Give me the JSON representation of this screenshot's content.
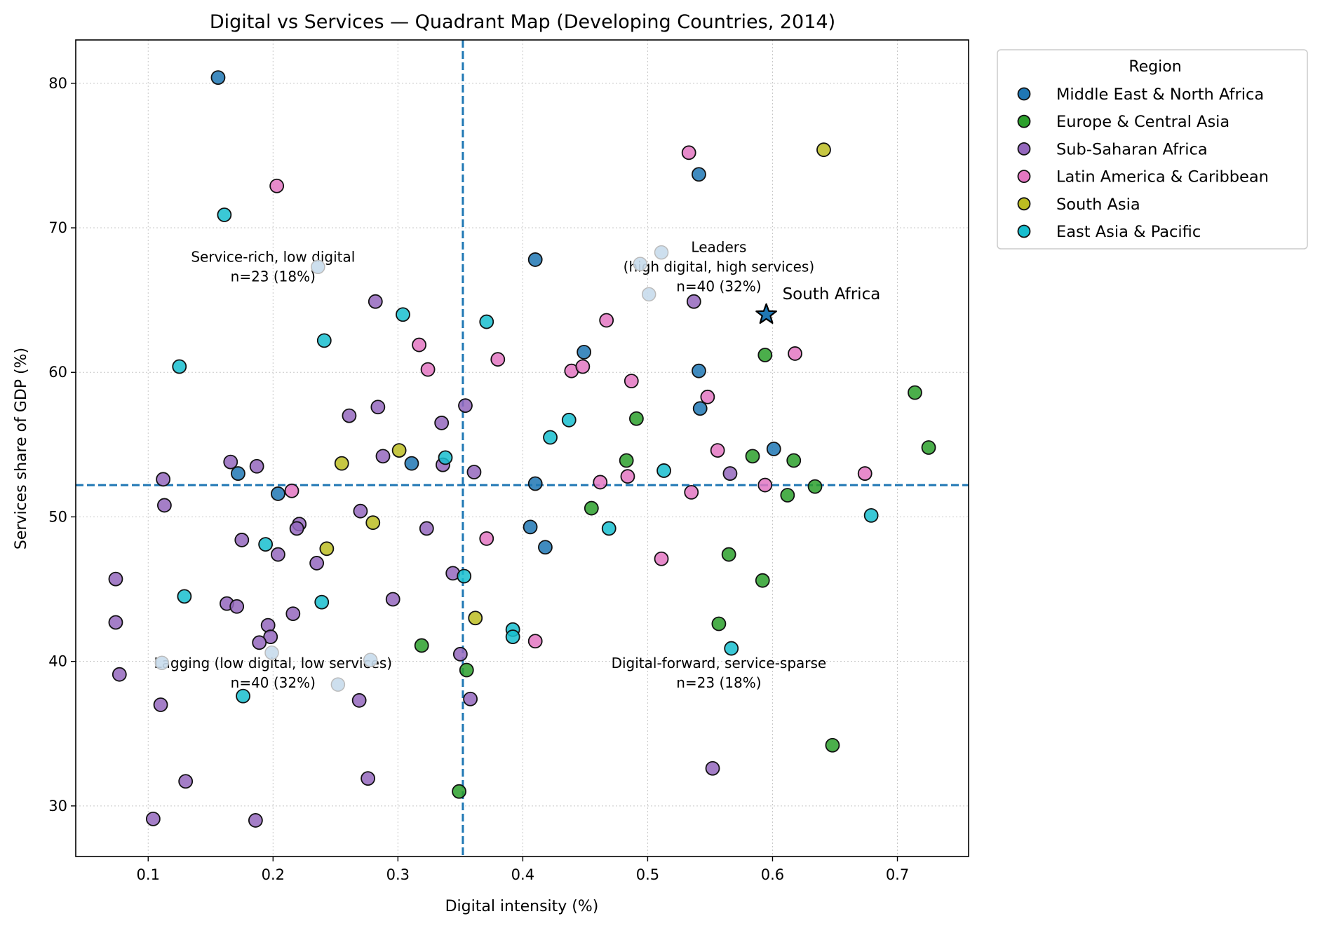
{
  "chart_data": {
    "type": "scatter",
    "title": "Digital vs Services — Quadrant Map (Developing Countries, 2014)",
    "xlabel": "Digital intensity (%)",
    "ylabel": "Services share of GDP (%)",
    "xlim": [
      0.042,
      0.757
    ],
    "ylim": [
      26.5,
      83.0
    ],
    "xticks": [
      0.1,
      0.2,
      0.3,
      0.4,
      0.5,
      0.6,
      0.7
    ],
    "yticks": [
      30,
      40,
      50,
      60,
      70,
      80
    ],
    "grid": true,
    "thresholds": {
      "x": 0.352,
      "y": 52.2,
      "color": "#1f77b4",
      "style": "dashed"
    },
    "quadrant_labels": [
      {
        "lines": [
          "Service-rich, low digital",
          "n=23 (18%)"
        ],
        "x": 0.2,
        "y": 67.3
      },
      {
        "lines": [
          "Leaders",
          "(high digital, high services)",
          "n=40 (32%)"
        ],
        "x": 0.557,
        "y": 67.3
      },
      {
        "lines": [
          "Lagging (low digital, low services)",
          "n=40 (32%)"
        ],
        "x": 0.2,
        "y": 39.2
      },
      {
        "lines": [
          "Digital-forward, service-sparse",
          "n=23 (18%)"
        ],
        "x": 0.557,
        "y": 39.2
      }
    ],
    "highlight": {
      "label": "South Africa",
      "x": 0.595,
      "y": 64.0,
      "color": "#1f77b4"
    },
    "legend": {
      "title": "Region",
      "position": "outside-right"
    },
    "series": [
      {
        "name": "Middle East & North Africa",
        "color": "#1f77b4",
        "points": [
          [
            0.156,
            80.4
          ],
          [
            0.541,
            73.7
          ],
          [
            0.41,
            67.8
          ],
          [
            0.449,
            61.4
          ],
          [
            0.541,
            60.1
          ],
          [
            0.542,
            57.5
          ],
          [
            0.601,
            54.7
          ],
          [
            0.311,
            53.7
          ],
          [
            0.172,
            53.0
          ],
          [
            0.41,
            52.3
          ],
          [
            0.204,
            51.6
          ],
          [
            0.406,
            49.3
          ],
          [
            0.418,
            47.9
          ]
        ]
      },
      {
        "name": "Europe & Central Asia",
        "color": "#2ca02c",
        "points": [
          [
            0.594,
            61.2
          ],
          [
            0.714,
            58.6
          ],
          [
            0.491,
            56.8
          ],
          [
            0.725,
            54.8
          ],
          [
            0.584,
            54.2
          ],
          [
            0.483,
            53.9
          ],
          [
            0.617,
            53.9
          ],
          [
            0.634,
            52.1
          ],
          [
            0.612,
            51.5
          ],
          [
            0.455,
            50.6
          ],
          [
            0.565,
            47.4
          ],
          [
            0.592,
            45.6
          ],
          [
            0.557,
            42.6
          ],
          [
            0.319,
            41.1
          ],
          [
            0.355,
            39.4
          ],
          [
            0.648,
            34.2
          ],
          [
            0.349,
            31.0
          ]
        ]
      },
      {
        "name": "Sub-Saharan Africa",
        "color": "#9467bd",
        "points": [
          [
            0.282,
            64.9
          ],
          [
            0.537,
            64.9
          ],
          [
            0.284,
            57.6
          ],
          [
            0.261,
            57.0
          ],
          [
            0.354,
            57.7
          ],
          [
            0.335,
            56.5
          ],
          [
            0.288,
            54.2
          ],
          [
            0.166,
            53.8
          ],
          [
            0.187,
            53.5
          ],
          [
            0.336,
            53.6
          ],
          [
            0.361,
            53.1
          ],
          [
            0.566,
            53.0
          ],
          [
            0.112,
            52.6
          ],
          [
            0.113,
            50.8
          ],
          [
            0.27,
            50.4
          ],
          [
            0.221,
            49.5
          ],
          [
            0.219,
            49.2
          ],
          [
            0.323,
            49.2
          ],
          [
            0.175,
            48.4
          ],
          [
            0.204,
            47.4
          ],
          [
            0.235,
            46.8
          ],
          [
            0.344,
            46.1
          ],
          [
            0.074,
            45.7
          ],
          [
            0.163,
            44.0
          ],
          [
            0.171,
            43.8
          ],
          [
            0.296,
            44.3
          ],
          [
            0.216,
            43.3
          ],
          [
            0.074,
            42.7
          ],
          [
            0.196,
            42.5
          ],
          [
            0.198,
            41.7
          ],
          [
            0.189,
            41.3
          ],
          [
            0.35,
            40.5
          ],
          [
            0.077,
            39.1
          ],
          [
            0.11,
            37.0
          ],
          [
            0.269,
            37.3
          ],
          [
            0.358,
            37.4
          ],
          [
            0.552,
            32.6
          ],
          [
            0.13,
            31.7
          ],
          [
            0.276,
            31.9
          ],
          [
            0.104,
            29.1
          ],
          [
            0.186,
            29.0
          ]
        ]
      },
      {
        "name": "Latin America & Caribbean",
        "color": "#e377c2",
        "points": [
          [
            0.533,
            75.2
          ],
          [
            0.203,
            72.9
          ],
          [
            0.467,
            63.6
          ],
          [
            0.317,
            61.9
          ],
          [
            0.324,
            60.2
          ],
          [
            0.38,
            60.9
          ],
          [
            0.439,
            60.1
          ],
          [
            0.448,
            60.4
          ],
          [
            0.487,
            59.4
          ],
          [
            0.618,
            61.3
          ],
          [
            0.548,
            58.3
          ],
          [
            0.556,
            54.6
          ],
          [
            0.462,
            52.4
          ],
          [
            0.484,
            52.8
          ],
          [
            0.594,
            52.2
          ],
          [
            0.674,
            53.0
          ],
          [
            0.535,
            51.7
          ],
          [
            0.215,
            51.8
          ],
          [
            0.371,
            48.5
          ],
          [
            0.511,
            47.1
          ],
          [
            0.41,
            41.4
          ]
        ]
      },
      {
        "name": "South Asia",
        "color": "#bcbd22",
        "points": [
          [
            0.641,
            75.4
          ],
          [
            0.301,
            54.6
          ],
          [
            0.255,
            53.7
          ],
          [
            0.28,
            49.6
          ],
          [
            0.243,
            47.8
          ],
          [
            0.362,
            43.0
          ]
        ]
      },
      {
        "name": "East Asia & Pacific",
        "color": "#17becf",
        "points": [
          [
            0.161,
            70.9
          ],
          [
            0.304,
            64.0
          ],
          [
            0.371,
            63.5
          ],
          [
            0.241,
            62.2
          ],
          [
            0.125,
            60.4
          ],
          [
            0.437,
            56.7
          ],
          [
            0.422,
            55.5
          ],
          [
            0.338,
            54.1
          ],
          [
            0.513,
            53.2
          ],
          [
            0.679,
            50.1
          ],
          [
            0.469,
            49.2
          ],
          [
            0.194,
            48.1
          ],
          [
            0.353,
            45.9
          ],
          [
            0.129,
            44.5
          ],
          [
            0.239,
            44.1
          ],
          [
            0.392,
            42.2
          ],
          [
            0.392,
            41.7
          ],
          [
            0.567,
            40.9
          ],
          [
            0.176,
            37.6
          ]
        ]
      },
      {
        "name": "",
        "color": "#c8dcec",
        "points": [
          [
            0.236,
            67.3
          ],
          [
            0.494,
            67.5
          ],
          [
            0.501,
            65.4
          ],
          [
            0.511,
            68.3
          ],
          [
            0.111,
            39.9
          ],
          [
            0.199,
            40.6
          ],
          [
            0.278,
            40.1
          ],
          [
            0.252,
            38.4
          ]
        ]
      }
    ]
  }
}
